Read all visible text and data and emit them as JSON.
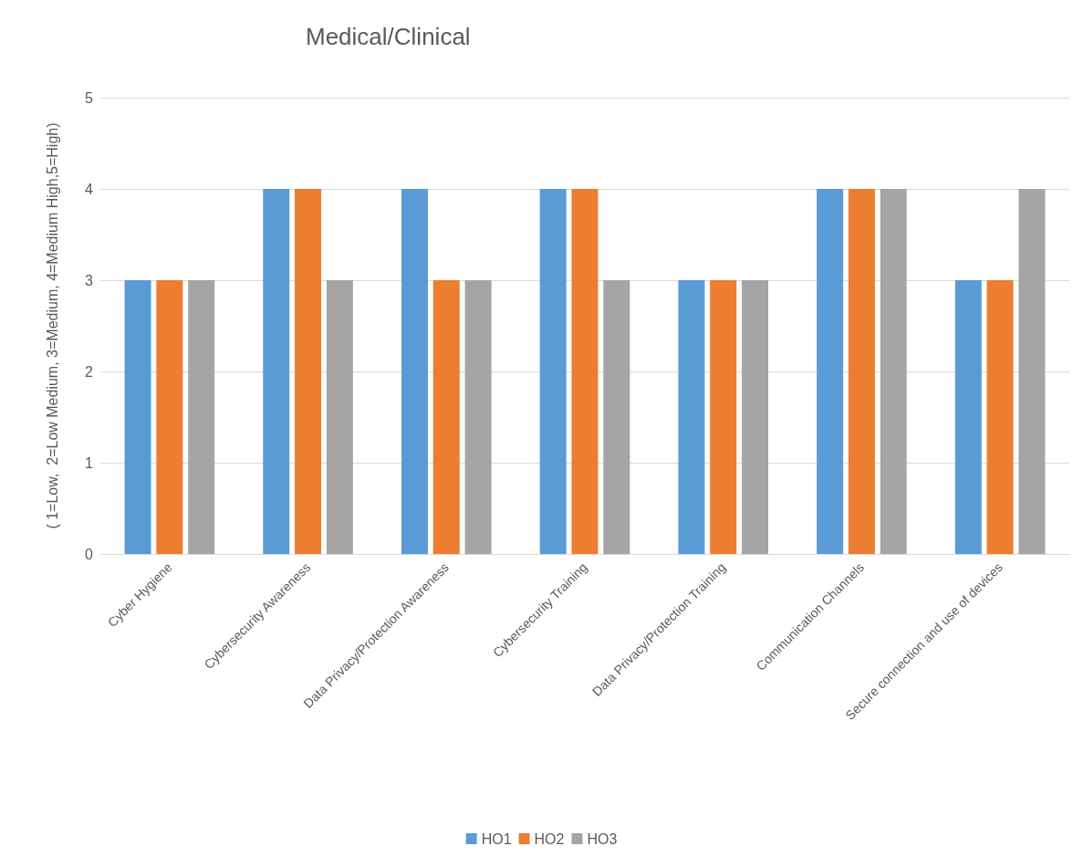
{
  "chart_data": {
    "type": "bar",
    "title": "Medical/Clinical",
    "ylabel": "( 1=Low,  2=Low Medium, 3=Medium, 4=Medium High,5=High)",
    "categories": [
      "Cyber Hygiene",
      "Cybersecurity Awareness",
      "Data Privacy/Protection Awareness",
      "Cybersecurity Training",
      "Data Privacy/Protection Training",
      "Communication Channels",
      "Secure connection and use of devices"
    ],
    "series": [
      {
        "name": "HO1",
        "color": "#5b9bd5",
        "values": [
          3,
          4,
          4,
          4,
          3,
          4,
          3
        ]
      },
      {
        "name": "HO2",
        "color": "#ed7d31",
        "values": [
          3,
          4,
          3,
          4,
          3,
          4,
          3
        ]
      },
      {
        "name": "HO3",
        "color": "#a5a5a5",
        "values": [
          3,
          3,
          3,
          3,
          3,
          4,
          4
        ]
      }
    ],
    "ylim": [
      0,
      5
    ],
    "yticks": [
      0,
      1,
      2,
      3,
      4,
      5
    ],
    "grid": "y",
    "legend": "bottom"
  }
}
